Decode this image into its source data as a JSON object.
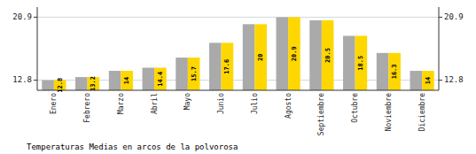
{
  "chart_data": {
    "type": "bar",
    "title": "Temperaturas Medias en arcos de la polvorosa",
    "categories": [
      "Enero",
      "Febrero",
      "Marzo",
      "Abril",
      "Mayo",
      "Junio",
      "Julio",
      "Agosto",
      "Septiembre",
      "Octubre",
      "Noviembre",
      "Diciembre"
    ],
    "series": [
      {
        "color": "#AAAAAA",
        "values": [
          12.8,
          13.2,
          14.0,
          14.4,
          15.7,
          17.6,
          20.0,
          20.9,
          20.5,
          18.5,
          16.3,
          14.0
        ]
      },
      {
        "color": "#FFD700",
        "values": [
          12.8,
          13.2,
          14.0,
          14.4,
          15.7,
          17.6,
          20.0,
          20.9,
          20.5,
          18.5,
          16.3,
          14.0
        ],
        "data_labels": true
      }
    ],
    "ylim": [
      11.5,
      22.2
    ],
    "yticks": [
      12.8,
      20.9
    ],
    "grid": true
  }
}
